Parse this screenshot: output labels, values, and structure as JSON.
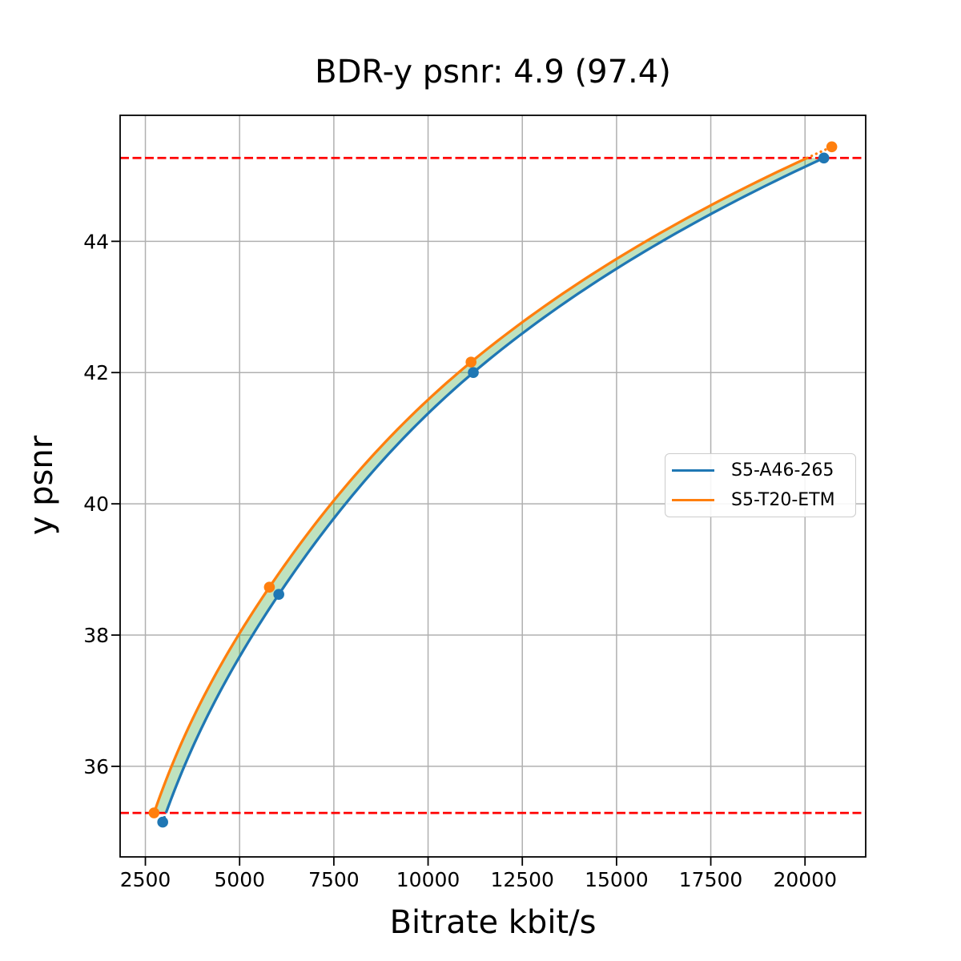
{
  "chart_data": {
    "type": "line",
    "title": "BDR-y psnr: 4.9 (97.4)",
    "xlabel": "Bitrate kbit/s",
    "ylabel": "y psnr",
    "xlim": [
      1830,
      21610
    ],
    "ylim": [
      34.62,
      45.92
    ],
    "xticks": [
      2500,
      5000,
      7500,
      10000,
      12500,
      15000,
      17500,
      20000
    ],
    "yticks": [
      36,
      38,
      40,
      42,
      44
    ],
    "grid": true,
    "legend": {
      "position": "center right",
      "entries": [
        "S5-A46-265",
        "S5-T20-ETM"
      ]
    },
    "series": [
      {
        "name": "S5-A46-265",
        "color": "#1f77b4",
        "points": [
          [
            2960,
            35.15
          ],
          [
            6040,
            38.62
          ],
          [
            11200,
            42.0
          ],
          [
            20500,
            45.27
          ]
        ]
      },
      {
        "name": "S5-T20-ETM",
        "color": "#ff7f0e",
        "points": [
          [
            2730,
            35.29
          ],
          [
            5790,
            38.73
          ],
          [
            11140,
            42.16
          ],
          [
            20710,
            45.44
          ]
        ]
      }
    ],
    "overlap_lines": {
      "y_values": [
        35.29,
        45.27
      ],
      "color": "#ff0000",
      "style": "dashed"
    },
    "band": {
      "between": [
        "S5-T20-ETM",
        "S5-A46-265"
      ],
      "y_range": [
        35.29,
        45.27
      ],
      "color": "#2ca02c",
      "alpha": 0.3
    },
    "colors": {
      "grid": "#b0b0b0",
      "frame": "#000000",
      "background": "#ffffff",
      "text": "#000000"
    }
  }
}
